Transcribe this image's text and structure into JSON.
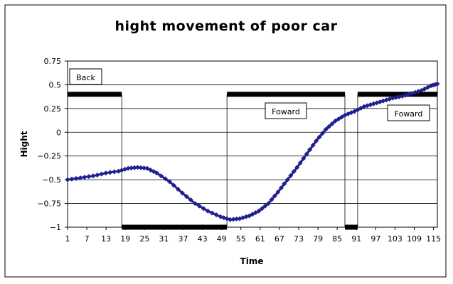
{
  "chart_data": {
    "type": "line",
    "title": "hight movement of poor car",
    "xlabel": "Time",
    "ylabel": "Hight",
    "xlim": [
      1,
      117
    ],
    "ylim": [
      -1,
      0.75
    ],
    "yticks": [
      0.75,
      0.5,
      0.25,
      0,
      -0.25,
      -0.5,
      -0.75,
      -1
    ],
    "ytick_labels": [
      "0.75",
      "0.5",
      "0.25",
      "0",
      "−0.25",
      "−0.5",
      "−0.75",
      "−1"
    ],
    "xtick_labels": [
      "1",
      "7",
      "13",
      "19",
      "25",
      "31",
      "37",
      "43",
      "49",
      "55",
      "61",
      "67",
      "73",
      "79",
      "85",
      "91",
      "97",
      "103",
      "109",
      "115"
    ],
    "grid": "horizontal",
    "legend": "none",
    "series": [
      {
        "color": "#1f1f8f",
        "marker": "diamond",
        "x": [
          1,
          5,
          9,
          13,
          17,
          20,
          23,
          26,
          29,
          33,
          37,
          41,
          45,
          49,
          52,
          55,
          58,
          61,
          64,
          67,
          70,
          73,
          76,
          79,
          82,
          85,
          88,
          91,
          94,
          97,
          100,
          103,
          106,
          109,
          112,
          115,
          117
        ],
        "y": [
          -0.5,
          -0.48,
          -0.46,
          -0.43,
          -0.41,
          -0.38,
          -0.37,
          -0.38,
          -0.43,
          -0.52,
          -0.64,
          -0.75,
          -0.83,
          -0.89,
          -0.92,
          -0.91,
          -0.88,
          -0.83,
          -0.75,
          -0.63,
          -0.5,
          -0.37,
          -0.23,
          -0.09,
          0.03,
          0.12,
          0.18,
          0.22,
          0.27,
          0.3,
          0.33,
          0.36,
          0.38,
          0.41,
          0.44,
          0.49,
          0.51
        ]
      }
    ],
    "annotations": [
      {
        "text": "Back"
      },
      {
        "text": "Foward"
      },
      {
        "text": "Foward"
      }
    ],
    "direction_bars": [
      {
        "level": 0.4,
        "from": 1,
        "to": 18
      },
      {
        "level": -1,
        "from": 18,
        "to": 51
      },
      {
        "level": 0.4,
        "from": 51,
        "to": 88
      },
      {
        "level": -1,
        "from": 88,
        "to": 92
      },
      {
        "level": 0.4,
        "from": 92,
        "to": 117
      }
    ]
  }
}
